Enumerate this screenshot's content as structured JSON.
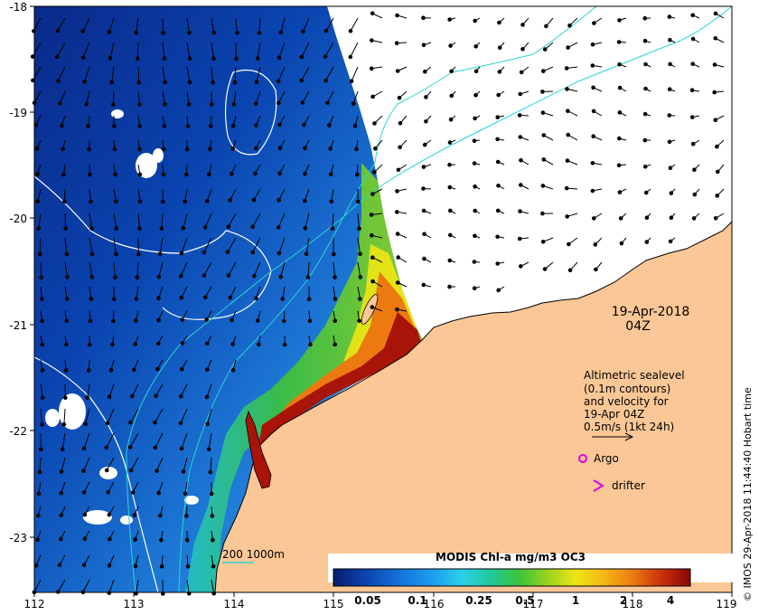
{
  "axes": {
    "lon_ticks": [
      "112",
      "113",
      "114",
      "115",
      "116",
      "117",
      "118",
      "119"
    ],
    "lat_ticks": [
      "-18",
      "-19",
      "-20",
      "-21",
      "-22",
      "-23"
    ]
  },
  "date": {
    "line1": "19-Apr-2018",
    "line2": "04Z"
  },
  "velocity_legend": {
    "lines": [
      "Altimetric sealevel",
      "(0.1m contours)",
      "and velocity for",
      "19-Apr 04Z",
      "0.5m/s (1kt 24h)"
    ]
  },
  "markers": {
    "argo_label": "Argo",
    "drifter_label": "drifter",
    "argo_color": "#e000e0",
    "drifter_color": "#e000e0"
  },
  "depth_legend": {
    "label": "200  1000m",
    "color": "#2ad4d4"
  },
  "colorbar": {
    "title": "MODIS Chl-a mg/m3 OC3",
    "ticks": [
      "0.05",
      "0.1",
      "0.25",
      "0.5",
      "1",
      "2",
      "4"
    ],
    "colors": [
      "#081d6e",
      "#0a3fa8",
      "#1470d8",
      "#1e9ef0",
      "#2ad0e8",
      "#22c89a",
      "#3cc23c",
      "#9ad21e",
      "#eee614",
      "#f4b414",
      "#ec7a10",
      "#d2420a",
      "#a81408",
      "#8a0606"
    ]
  },
  "credit": "© IMOS 29-Apr-2018 11:44:40 Hobart time",
  "colors": {
    "land": "#fbc796",
    "coast": "#000000",
    "contour": "#ffffff",
    "bathy": "#2ad4d4"
  }
}
